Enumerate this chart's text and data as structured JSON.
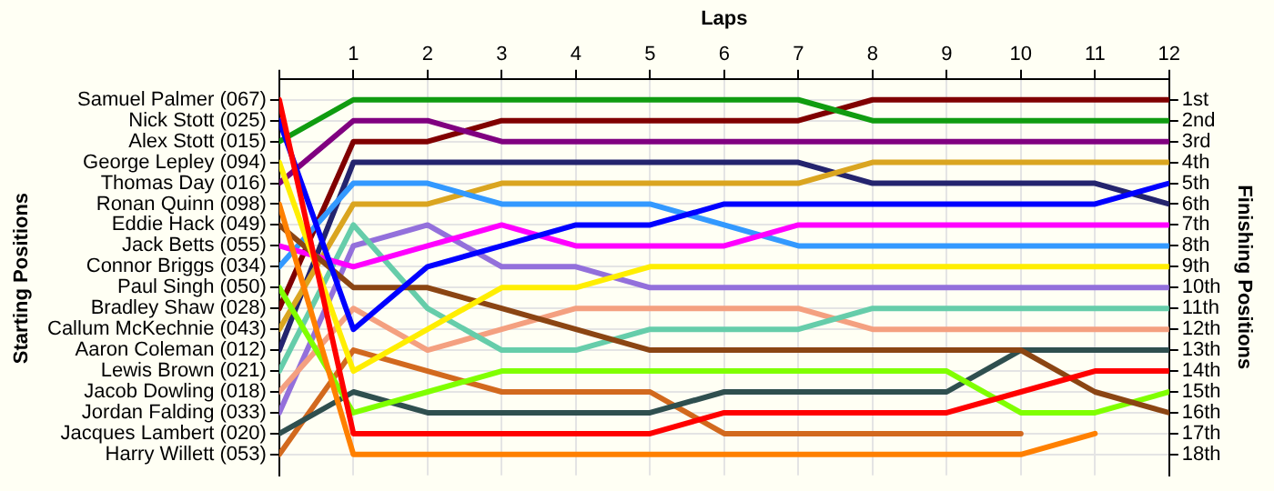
{
  "chart_data": {
    "type": "line",
    "xlabel": "Laps",
    "ylabel": "Finishing Positions",
    "annotations": [
      "Starting Positions"
    ],
    "x": [
      0,
      1,
      2,
      3,
      4,
      5,
      6,
      7,
      8,
      9,
      10,
      11,
      12
    ],
    "xlim": [
      0,
      12
    ],
    "xticks": [
      {
        "value": 0,
        "label": null
      },
      1,
      2,
      3,
      4,
      5,
      6,
      7,
      8,
      9,
      10,
      11,
      12
    ],
    "ylim": [
      19,
      0
    ],
    "yticks": [
      {
        "value": 1,
        "label": "1st"
      },
      {
        "value": 2,
        "label": "2nd"
      },
      {
        "value": 3,
        "label": "3rd"
      },
      {
        "value": 4,
        "label": "4th"
      },
      {
        "value": 5,
        "label": "5th"
      },
      {
        "value": 6,
        "label": "6th"
      },
      {
        "value": 7,
        "label": "7th"
      },
      {
        "value": 8,
        "label": "8th"
      },
      {
        "value": 9,
        "label": "9th"
      },
      {
        "value": 10,
        "label": "10th"
      },
      {
        "value": 11,
        "label": "11th"
      },
      {
        "value": 12,
        "label": "12th"
      },
      {
        "value": 13,
        "label": "13th"
      },
      {
        "value": 14,
        "label": "14th"
      },
      {
        "value": 15,
        "label": "15th"
      },
      {
        "value": 16,
        "label": "16th"
      },
      {
        "value": 17,
        "label": "17th"
      },
      {
        "value": 18,
        "label": "18th"
      }
    ],
    "y2_categories": [
      "Samuel Palmer (067)",
      "Nick Stott (025)",
      "Alex Stott (015)",
      "George Lepley (094)",
      "Thomas Day (016)",
      "Ronan Quinn (098)",
      "Eddie Hack (049)",
      "Jack Betts (055)",
      "Connor Briggs (034)",
      "Paul Singh (050)",
      "Bradley Shaw (028)",
      "Callum McKechnie (043)",
      "Aaron Coleman (012)",
      "Lewis Brown (021)",
      "Jacob Dowling (018)",
      "Jordan Falding (033)",
      "Jacques Lambert (020)",
      "Harry Willett (053)"
    ],
    "grid": true,
    "marker": "none",
    "line_style": "solid",
    "series": [
      {
        "color": "#ff0000",
        "values": [
          1,
          17,
          17,
          17,
          17,
          17,
          16,
          16,
          16,
          16,
          15,
          14,
          14
        ]
      },
      {
        "color": "#0000ff",
        "values": [
          2,
          12,
          9,
          8,
          7,
          7,
          6,
          6,
          6,
          6,
          6,
          6,
          5
        ]
      },
      {
        "color": "#109c10",
        "values": [
          3,
          1,
          1,
          1,
          1,
          1,
          1,
          1,
          2,
          2,
          2,
          2,
          2
        ]
      },
      {
        "color": "#ffee00",
        "values": [
          4,
          14,
          12,
          10,
          10,
          9,
          9,
          9,
          9,
          9,
          9,
          9,
          9
        ]
      },
      {
        "color": "#800080",
        "values": [
          5,
          2,
          2,
          3,
          3,
          3,
          3,
          3,
          3,
          3,
          3,
          3,
          3
        ]
      },
      {
        "color": "#ff8000",
        "values": [
          6,
          18,
          18,
          18,
          18,
          18,
          18,
          18,
          18,
          18,
          18,
          17,
          null
        ]
      },
      {
        "color": "#8b4513",
        "values": [
          7,
          10,
          10,
          11,
          12,
          13,
          13,
          13,
          13,
          13,
          13,
          15,
          16
        ]
      },
      {
        "color": "#ff00ff",
        "values": [
          8,
          9,
          8,
          7,
          8,
          8,
          8,
          7,
          7,
          7,
          7,
          7,
          7
        ]
      },
      {
        "color": "#3399ff",
        "values": [
          9,
          5,
          5,
          6,
          6,
          6,
          7,
          8,
          8,
          8,
          8,
          8,
          8
        ]
      },
      {
        "color": "#80ff00",
        "values": [
          10,
          16,
          15,
          14,
          14,
          14,
          14,
          14,
          14,
          14,
          16,
          16,
          15
        ]
      },
      {
        "color": "#800000",
        "values": [
          11,
          3,
          3,
          2,
          2,
          2,
          2,
          2,
          1,
          1,
          1,
          1,
          1
        ]
      },
      {
        "color": "#daa520",
        "values": [
          12,
          6,
          6,
          5,
          5,
          5,
          5,
          5,
          4,
          4,
          4,
          4,
          4
        ]
      },
      {
        "color": "#24246e",
        "values": [
          13,
          4,
          4,
          4,
          4,
          4,
          4,
          4,
          5,
          5,
          5,
          5,
          6
        ]
      },
      {
        "color": "#66cdaa",
        "values": [
          14,
          7,
          11,
          13,
          13,
          12,
          12,
          12,
          11,
          11,
          11,
          11,
          11
        ]
      },
      {
        "color": "#f4a080",
        "values": [
          15,
          11,
          13,
          12,
          11,
          11,
          11,
          11,
          12,
          12,
          12,
          12,
          12
        ]
      },
      {
        "color": "#9370db",
        "values": [
          16,
          8,
          7,
          9,
          9,
          10,
          10,
          10,
          10,
          10,
          10,
          10,
          10
        ]
      },
      {
        "color": "#2f4f4f",
        "values": [
          17,
          15,
          16,
          16,
          16,
          16,
          15,
          15,
          15,
          15,
          13,
          13,
          13
        ]
      },
      {
        "color": "#d2691e",
        "values": [
          18,
          13,
          14,
          15,
          15,
          15,
          17,
          17,
          17,
          17,
          17,
          null,
          null
        ]
      }
    ]
  }
}
